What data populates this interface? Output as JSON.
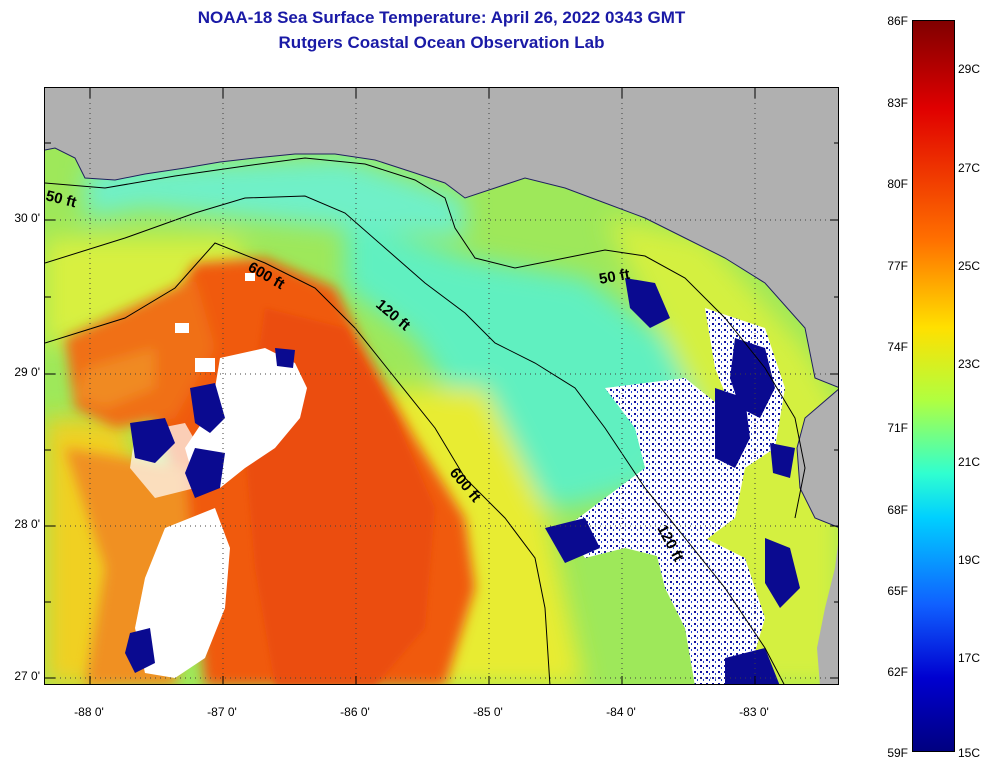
{
  "title_line1": "NOAA-18 Sea Surface Temperature:  April 26, 2022 0343 GMT",
  "title_line2": "Rutgers Coastal Ocean Observation Lab",
  "latitude_labels": [
    "30 0'",
    "29 0'",
    "28 0'",
    "27 0'"
  ],
  "longitude_labels": [
    "-88 0'",
    "-87 0'",
    "-86 0'",
    "-85 0'",
    "-84 0'",
    "-83 0'"
  ],
  "depth_contours": {
    "c50_west": "50 ft",
    "c50_east": "50 ft",
    "c120_mid": "120 ft",
    "c120_south": "120 ft",
    "c600_north": "600 ft",
    "c600_south": "600 ft"
  },
  "colorbar": {
    "fahrenheit_labels": [
      "86F",
      "83F",
      "80F",
      "77F",
      "74F",
      "71F",
      "68F",
      "65F",
      "62F",
      "59F"
    ],
    "celsius_labels": [
      "29C",
      "27C",
      "25C",
      "23C",
      "21C",
      "19C",
      "17C",
      "15C"
    ],
    "min_f": 59,
    "max_f": 86
  },
  "colors": {
    "land": "#b0b0b0",
    "cloud": "#ffffff",
    "title": "#1a1aa6",
    "warm": "#f05a10",
    "mid": "#e8e820",
    "cool": "#40e0b8",
    "cold": "#00008c"
  }
}
